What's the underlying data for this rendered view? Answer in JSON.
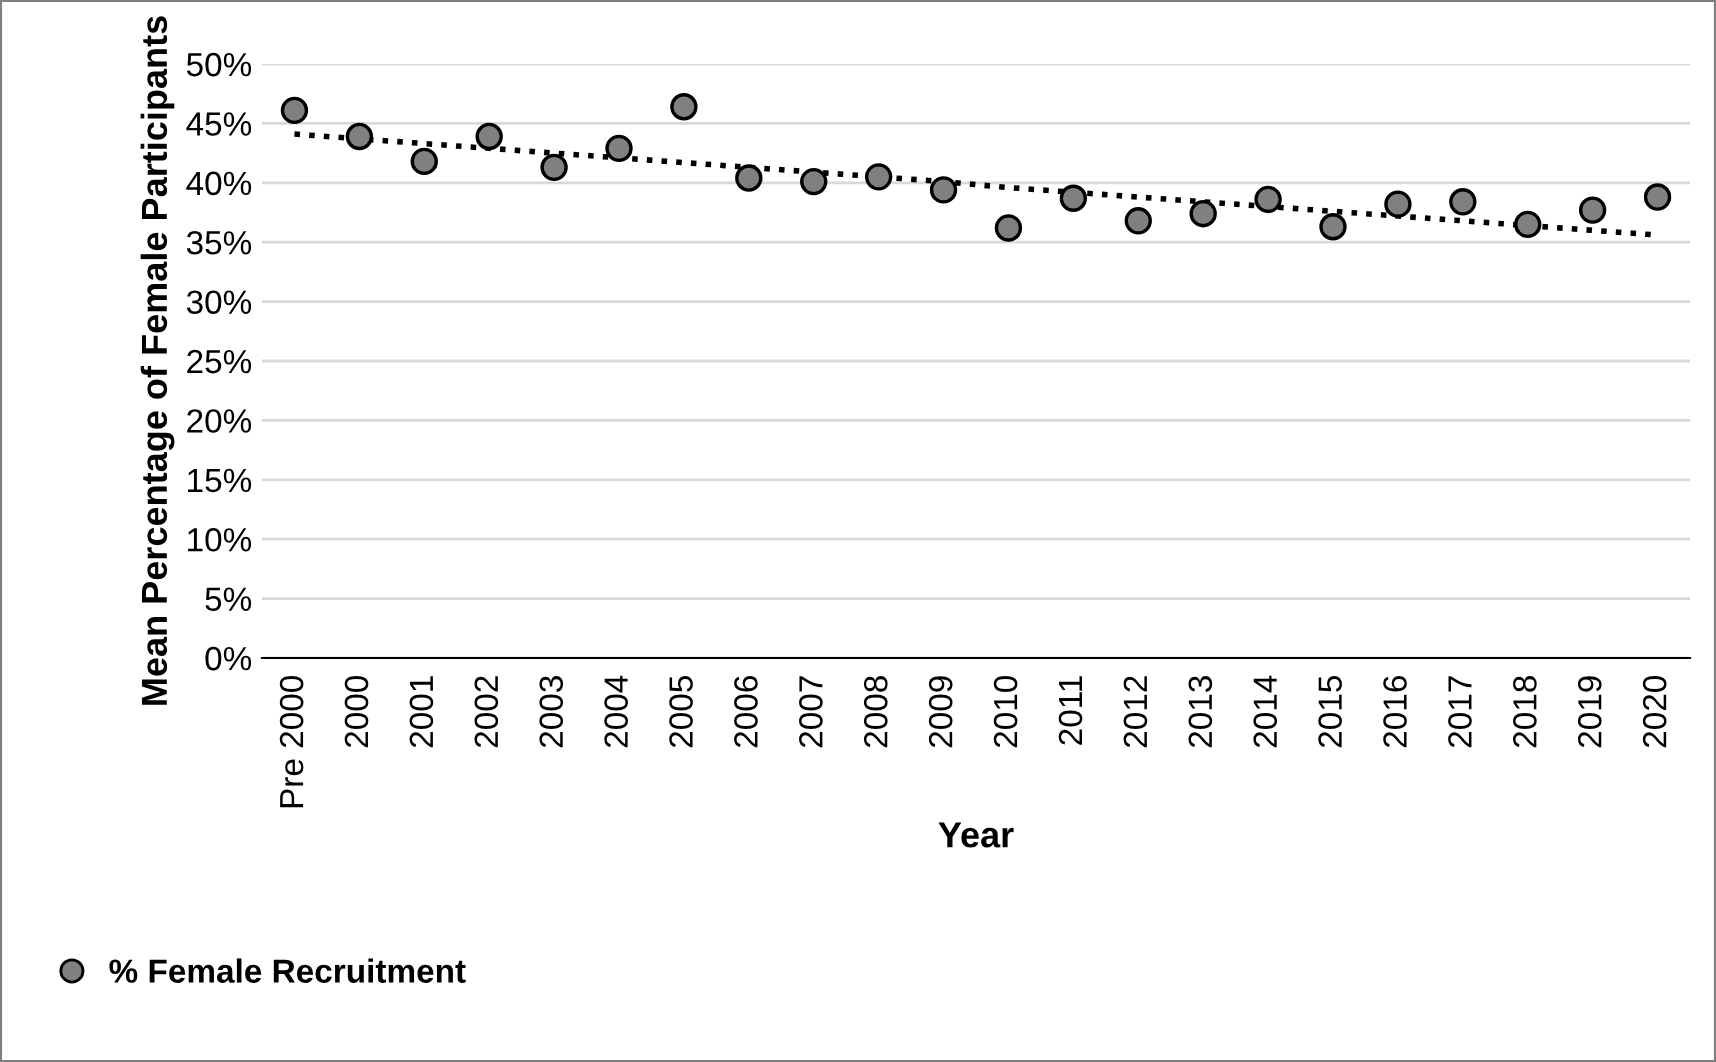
{
  "chart_data": {
    "type": "scatter",
    "xlabel": "Year",
    "ylabel": "Mean Percentage of Female Participants",
    "categories": [
      "Pre 2000",
      "2000",
      "2001",
      "2002",
      "2003",
      "2004",
      "2005",
      "2006",
      "2007",
      "2008",
      "2009",
      "2010",
      "2011",
      "2012",
      "2013",
      "2014",
      "2015",
      "2016",
      "2017",
      "2018",
      "2019",
      "2020"
    ],
    "series": [
      {
        "name": "% Female Recruitment",
        "color": "#808080",
        "marker": "circle",
        "values": [
          46.1,
          43.9,
          41.8,
          43.9,
          41.3,
          42.9,
          46.4,
          40.4,
          40.1,
          40.5,
          39.4,
          36.2,
          38.7,
          36.8,
          37.4,
          38.6,
          36.3,
          38.2,
          38.4,
          36.5,
          37.7,
          38.8
        ]
      },
      {
        "type": "line",
        "color": "#000000",
        "line_style": "dotted",
        "marker": "none",
        "values": [
          44.1,
          43.7,
          43.3,
          42.9,
          42.5,
          42.1,
          41.7,
          41.3,
          40.9,
          40.5,
          40.1,
          39.6,
          39.2,
          38.8,
          38.4,
          38.0,
          37.6,
          37.2,
          36.8,
          36.4,
          36.0,
          35.6
        ]
      }
    ],
    "ylim": [
      0,
      50
    ],
    "yticks": [
      {
        "value": 0,
        "label": "0%"
      },
      {
        "value": 5,
        "label": "5%"
      },
      {
        "value": 10,
        "label": "10%"
      },
      {
        "value": 15,
        "label": "15%"
      },
      {
        "value": 20,
        "label": "20%"
      },
      {
        "value": 25,
        "label": "25%"
      },
      {
        "value": 30,
        "label": "30%"
      },
      {
        "value": 35,
        "label": "35%"
      },
      {
        "value": 40,
        "label": "40%"
      },
      {
        "value": 45,
        "label": "45%"
      },
      {
        "value": 50,
        "label": "50%"
      }
    ],
    "grid": "y",
    "legend": "bottom left"
  }
}
